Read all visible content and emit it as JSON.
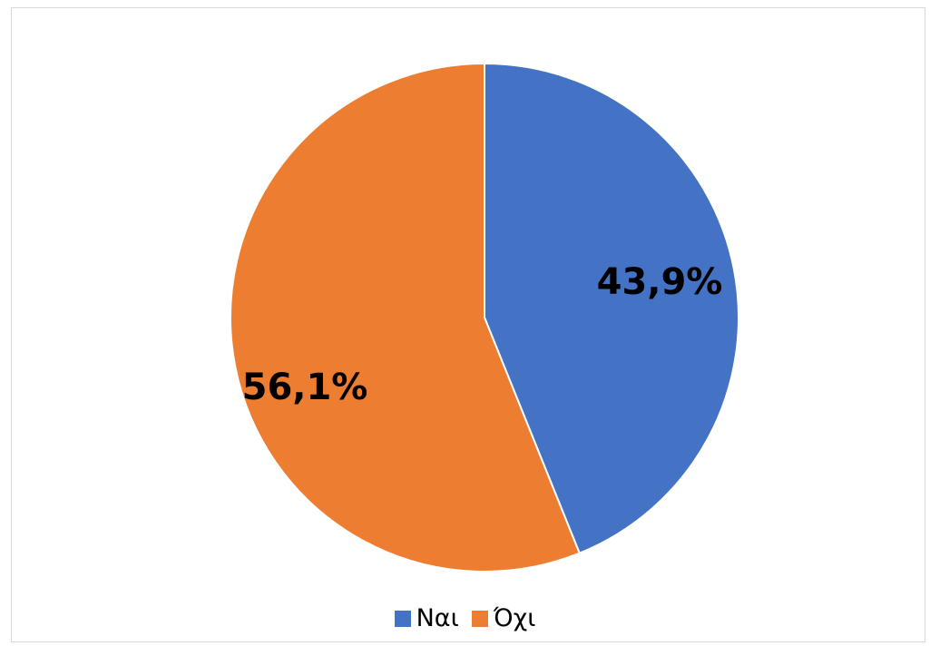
{
  "chart_data": {
    "type": "pie",
    "title": "",
    "categories": [
      "Ναι",
      "Όχι"
    ],
    "values": [
      43.9,
      56.1
    ],
    "data_labels": [
      "43,9%",
      "56,1%"
    ],
    "colors": [
      "#4472C4",
      "#ED7D31"
    ],
    "legend_position": "bottom"
  }
}
